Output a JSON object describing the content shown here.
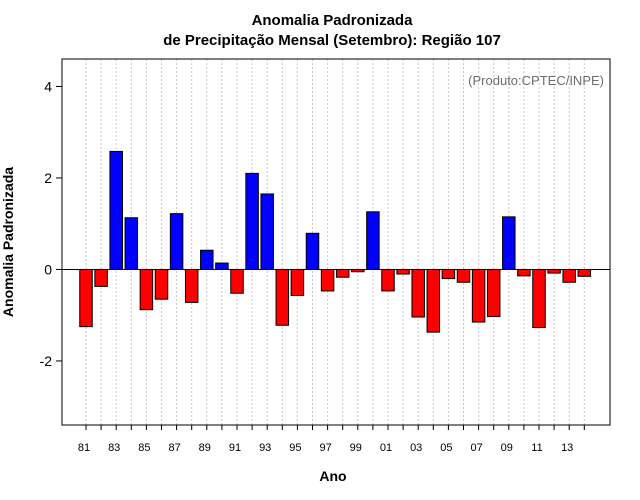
{
  "chart_data": {
    "type": "bar",
    "title_line1": "Anomalia Padronizada",
    "title_line2": "de Precipitação Mensal (Setembro): Região 107",
    "xlabel": "Ano",
    "ylabel": "Anomalia Padronizada",
    "credit": "(Produto:CPTEC/INPE)",
    "ylim": [
      -3.4,
      4.6
    ],
    "yticks": [
      -2,
      0,
      2,
      4
    ],
    "grid": "vertical dotted",
    "positive_color": "#0000ff",
    "negative_color": "#ff0000",
    "categories": [
      "81",
      "82",
      "83",
      "84",
      "85",
      "86",
      "87",
      "88",
      "89",
      "90",
      "91",
      "92",
      "93",
      "94",
      "95",
      "96",
      "97",
      "98",
      "99",
      "00",
      "01",
      "02",
      "03",
      "04",
      "05",
      "06",
      "07",
      "08",
      "09",
      "10",
      "11",
      "12",
      "13",
      "14"
    ],
    "tick_labels": [
      "81",
      "83",
      "85",
      "87",
      "89",
      "91",
      "93",
      "95",
      "97",
      "99",
      "01",
      "03",
      "05",
      "07",
      "09",
      "11",
      "13"
    ],
    "values": [
      -1.25,
      -0.37,
      2.58,
      1.13,
      -0.88,
      -0.65,
      1.22,
      -0.72,
      0.42,
      0.14,
      -0.52,
      2.1,
      1.65,
      -1.22,
      -0.57,
      0.79,
      -0.47,
      -0.17,
      -0.05,
      1.26,
      -0.47,
      -0.1,
      -1.04,
      -1.37,
      -0.2,
      -0.28,
      -1.15,
      -1.03,
      1.15,
      -0.14,
      -1.27,
      -0.08,
      -0.28,
      -0.15
    ]
  }
}
